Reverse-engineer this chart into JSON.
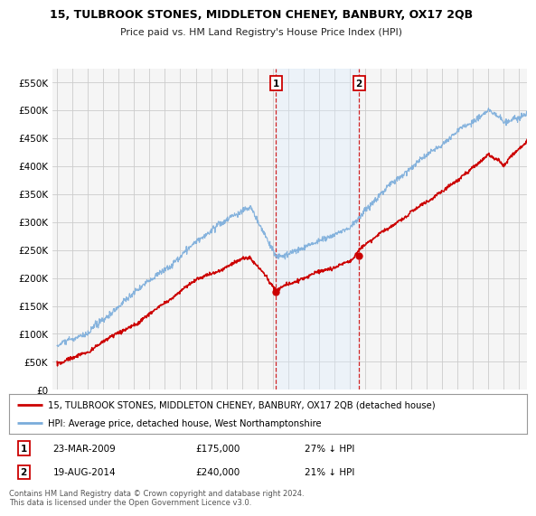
{
  "title": "15, TULBROOK STONES, MIDDLETON CHENEY, BANBURY, OX17 2QB",
  "subtitle": "Price paid vs. HM Land Registry's House Price Index (HPI)",
  "red_label": "15, TULBROOK STONES, MIDDLETON CHENEY, BANBURY, OX17 2QB (detached house)",
  "blue_label": "HPI: Average price, detached house, West Northamptonshire",
  "ann1": {
    "num": "1",
    "date": "23-MAR-2009",
    "price": "£175,000",
    "pct": "27% ↓ HPI",
    "year": 2009.2
  },
  "ann2": {
    "num": "2",
    "date": "19-AUG-2014",
    "price": "£240,000",
    "pct": "21% ↓ HPI",
    "year": 2014.6
  },
  "ann1_val": 175000,
  "ann2_val": 240000,
  "footer": "Contains HM Land Registry data © Crown copyright and database right 2024.\nThis data is licensed under the Open Government Licence v3.0.",
  "ylim": [
    0,
    575000
  ],
  "yticks": [
    0,
    50000,
    100000,
    150000,
    200000,
    250000,
    300000,
    350000,
    400000,
    450000,
    500000,
    550000
  ],
  "background_color": "#ffffff",
  "plot_bg_color": "#f5f5f5",
  "grid_color": "#cccccc",
  "red_color": "#cc0000",
  "blue_color": "#7aacdb",
  "shade_color": "#ddeeff",
  "xstart": 1995,
  "xend": 2025,
  "xlim_lo": 1994.7,
  "xlim_hi": 2025.5
}
